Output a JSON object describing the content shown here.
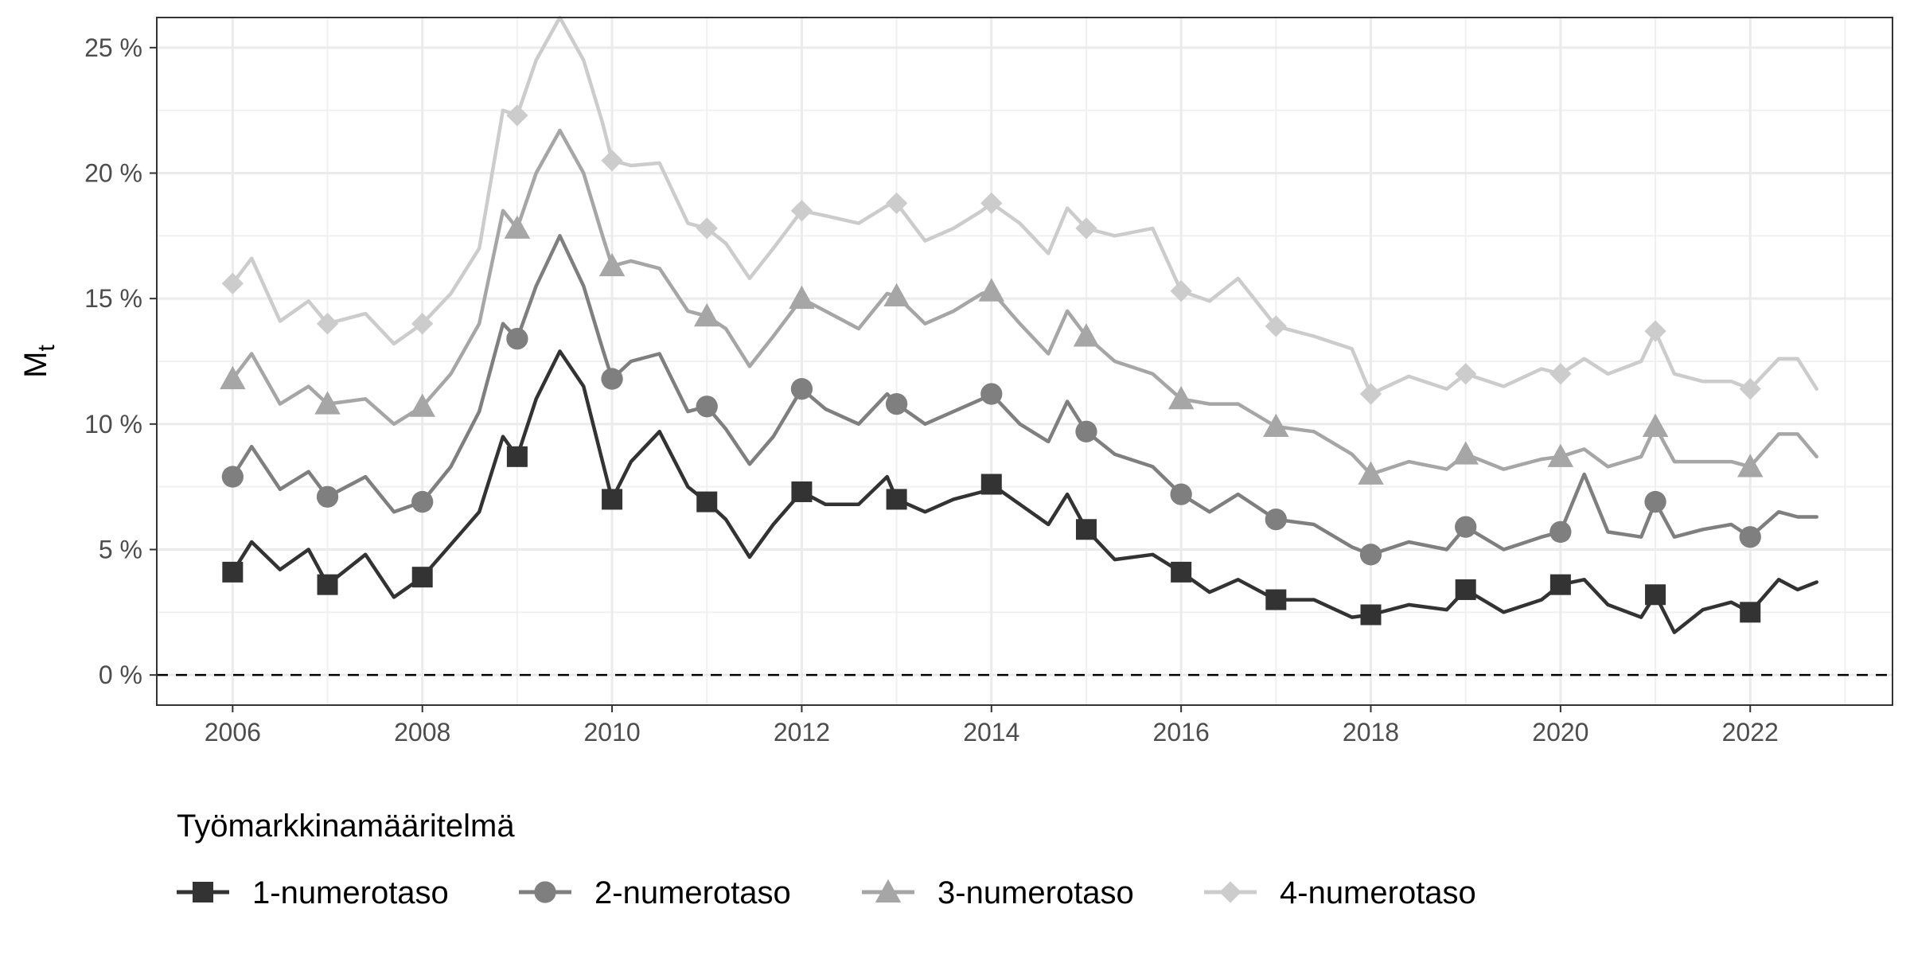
{
  "chart_data": {
    "type": "line",
    "title": "",
    "xlabel": "",
    "ylabel": "M",
    "ylabel_sub": "t",
    "xlim": [
      2005.2,
      2023.5
    ],
    "ylim": [
      -1.2,
      26.2
    ],
    "x_ticks": [
      2006,
      2008,
      2010,
      2012,
      2014,
      2016,
      2018,
      2020,
      2022
    ],
    "y_ticks": [
      0,
      5,
      10,
      15,
      20,
      25
    ],
    "y_tick_labels": [
      "0 %",
      "5 %",
      "10 %",
      "15 %",
      "20 %",
      "25 %"
    ],
    "x_tick_labels": [
      "2006",
      "2008",
      "2010",
      "2012",
      "2014",
      "2016",
      "2018",
      "2020",
      "2022"
    ],
    "reference_line": {
      "y": 0,
      "style": "dashed"
    },
    "grid": true,
    "legend": {
      "position": "bottom",
      "title": "Työmarkkinamääritelmä"
    },
    "series": [
      {
        "name": "1-numerotaso",
        "color": "#333333",
        "marker": "square",
        "x": [
          2006.0,
          2006.2,
          2006.5,
          2006.8,
          2007.0,
          2007.4,
          2007.7,
          2008.0,
          2008.3,
          2008.6,
          2008.85,
          2009.0,
          2009.2,
          2009.45,
          2009.7,
          2009.9,
          2010.0,
          2010.2,
          2010.5,
          2010.8,
          2011.0,
          2011.2,
          2011.45,
          2011.7,
          2012.0,
          2012.25,
          2012.6,
          2012.9,
          2013.0,
          2013.3,
          2013.6,
          2013.9,
          2014.0,
          2014.3,
          2014.6,
          2014.8,
          2015.0,
          2015.3,
          2015.7,
          2016.0,
          2016.3,
          2016.6,
          2017.0,
          2017.4,
          2017.8,
          2018.0,
          2018.4,
          2018.8,
          2019.0,
          2019.4,
          2019.8,
          2020.0,
          2020.25,
          2020.5,
          2020.85,
          2021.0,
          2021.2,
          2021.5,
          2021.8,
          2022.0,
          2022.3,
          2022.5,
          2022.7
        ],
        "y": [
          4.1,
          5.3,
          4.2,
          5.0,
          3.6,
          4.8,
          3.1,
          3.9,
          5.2,
          6.5,
          9.5,
          8.7,
          11.0,
          12.9,
          11.5,
          8.5,
          7.0,
          8.5,
          9.7,
          7.5,
          6.9,
          6.2,
          4.7,
          6.0,
          7.3,
          6.8,
          6.8,
          7.9,
          7.0,
          6.5,
          7.0,
          7.3,
          7.6,
          6.8,
          6.0,
          7.2,
          5.8,
          4.6,
          4.8,
          4.1,
          3.3,
          3.8,
          3.0,
          3.0,
          2.3,
          2.4,
          2.8,
          2.6,
          3.4,
          2.5,
          3.0,
          3.6,
          3.8,
          2.8,
          2.3,
          3.2,
          1.7,
          2.6,
          2.9,
          2.5,
          3.8,
          3.4,
          3.7
        ]
      },
      {
        "name": "2-numerotaso",
        "color": "#7f7f7f",
        "marker": "circle",
        "x": [
          2006.0,
          2006.2,
          2006.5,
          2006.8,
          2007.0,
          2007.4,
          2007.7,
          2008.0,
          2008.3,
          2008.6,
          2008.85,
          2009.0,
          2009.2,
          2009.45,
          2009.7,
          2009.9,
          2010.0,
          2010.2,
          2010.5,
          2010.8,
          2011.0,
          2011.2,
          2011.45,
          2011.7,
          2012.0,
          2012.25,
          2012.6,
          2012.9,
          2013.0,
          2013.3,
          2013.6,
          2013.9,
          2014.0,
          2014.3,
          2014.6,
          2014.8,
          2015.0,
          2015.3,
          2015.7,
          2016.0,
          2016.3,
          2016.6,
          2017.0,
          2017.4,
          2017.8,
          2018.0,
          2018.4,
          2018.8,
          2019.0,
          2019.4,
          2019.8,
          2020.0,
          2020.25,
          2020.5,
          2020.85,
          2021.0,
          2021.2,
          2021.5,
          2021.8,
          2022.0,
          2022.3,
          2022.5,
          2022.7
        ],
        "y": [
          7.9,
          9.1,
          7.4,
          8.1,
          7.1,
          7.9,
          6.5,
          6.9,
          8.3,
          10.5,
          14.0,
          13.4,
          15.5,
          17.5,
          15.5,
          13.0,
          11.8,
          12.5,
          12.8,
          10.5,
          10.7,
          9.8,
          8.4,
          9.5,
          11.4,
          10.6,
          10.0,
          11.2,
          10.8,
          10.0,
          10.5,
          11.0,
          11.2,
          10.0,
          9.3,
          10.9,
          9.7,
          8.8,
          8.3,
          7.2,
          6.5,
          7.2,
          6.2,
          6.0,
          5.1,
          4.8,
          5.3,
          5.0,
          5.9,
          5.0,
          5.5,
          5.7,
          8.0,
          5.7,
          5.5,
          6.9,
          5.5,
          5.8,
          6.0,
          5.5,
          6.5,
          6.3,
          6.3
        ]
      },
      {
        "name": "3-numerotaso",
        "color": "#a6a6a6",
        "marker": "triangle",
        "x": [
          2006.0,
          2006.2,
          2006.5,
          2006.8,
          2007.0,
          2007.4,
          2007.7,
          2008.0,
          2008.3,
          2008.6,
          2008.85,
          2009.0,
          2009.2,
          2009.45,
          2009.7,
          2009.9,
          2010.0,
          2010.2,
          2010.5,
          2010.8,
          2011.0,
          2011.2,
          2011.45,
          2011.7,
          2012.0,
          2012.25,
          2012.6,
          2012.9,
          2013.0,
          2013.3,
          2013.6,
          2013.9,
          2014.0,
          2014.3,
          2014.6,
          2014.8,
          2015.0,
          2015.3,
          2015.7,
          2016.0,
          2016.3,
          2016.6,
          2017.0,
          2017.4,
          2017.8,
          2018.0,
          2018.4,
          2018.8,
          2019.0,
          2019.4,
          2019.8,
          2020.0,
          2020.25,
          2020.5,
          2020.85,
          2021.0,
          2021.2,
          2021.5,
          2021.8,
          2022.0,
          2022.3,
          2022.5,
          2022.7
        ],
        "y": [
          11.8,
          12.8,
          10.8,
          11.5,
          10.8,
          11.0,
          10.0,
          10.7,
          12.0,
          14.0,
          18.5,
          17.8,
          20.0,
          21.7,
          20.0,
          17.5,
          16.3,
          16.5,
          16.2,
          14.5,
          14.3,
          13.8,
          12.3,
          13.5,
          15.0,
          14.5,
          13.8,
          15.2,
          15.1,
          14.0,
          14.5,
          15.2,
          15.3,
          14.0,
          12.8,
          14.5,
          13.5,
          12.5,
          12.0,
          11.0,
          10.8,
          10.8,
          9.9,
          9.7,
          8.8,
          8.0,
          8.5,
          8.2,
          8.8,
          8.2,
          8.6,
          8.7,
          9.0,
          8.3,
          8.7,
          9.9,
          8.5,
          8.5,
          8.5,
          8.3,
          9.6,
          9.6,
          8.7
        ]
      },
      {
        "name": "4-numerotaso",
        "color": "#cccccc",
        "marker": "diamond",
        "x": [
          2006.0,
          2006.2,
          2006.5,
          2006.8,
          2007.0,
          2007.4,
          2007.7,
          2008.0,
          2008.3,
          2008.6,
          2008.85,
          2009.0,
          2009.2,
          2009.45,
          2009.7,
          2009.9,
          2010.0,
          2010.2,
          2010.5,
          2010.8,
          2011.0,
          2011.2,
          2011.45,
          2011.7,
          2012.0,
          2012.25,
          2012.6,
          2012.9,
          2013.0,
          2013.3,
          2013.6,
          2013.9,
          2014.0,
          2014.3,
          2014.6,
          2014.8,
          2015.0,
          2015.3,
          2015.7,
          2016.0,
          2016.3,
          2016.6,
          2017.0,
          2017.4,
          2017.8,
          2018.0,
          2018.4,
          2018.8,
          2019.0,
          2019.4,
          2019.8,
          2020.0,
          2020.25,
          2020.5,
          2020.85,
          2021.0,
          2021.2,
          2021.5,
          2021.8,
          2022.0,
          2022.3,
          2022.5,
          2022.7
        ],
        "y": [
          15.6,
          16.6,
          14.1,
          14.9,
          14.0,
          14.4,
          13.2,
          14.0,
          15.2,
          17.0,
          22.5,
          22.3,
          24.5,
          26.2,
          24.5,
          22.0,
          20.5,
          20.3,
          20.4,
          18.0,
          17.8,
          17.2,
          15.8,
          17.0,
          18.5,
          18.3,
          18.0,
          18.7,
          18.8,
          17.3,
          17.8,
          18.5,
          18.8,
          18.0,
          16.8,
          18.6,
          17.8,
          17.5,
          17.8,
          15.3,
          14.9,
          15.8,
          13.9,
          13.5,
          13.0,
          11.2,
          11.9,
          11.4,
          12.0,
          11.5,
          12.2,
          12.0,
          12.6,
          12.0,
          12.5,
          13.7,
          12.0,
          11.7,
          11.7,
          11.4,
          12.6,
          12.6,
          11.4
        ]
      }
    ]
  }
}
